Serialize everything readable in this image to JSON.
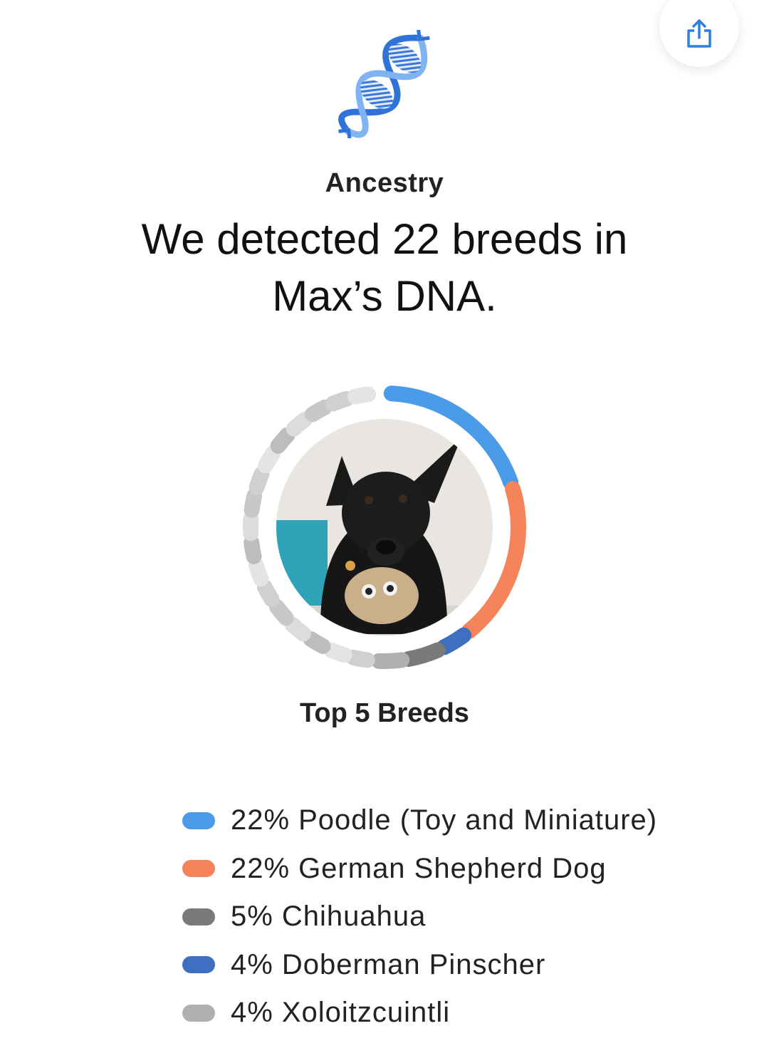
{
  "header": {
    "share_icon": "share-icon",
    "dna_icon": "dna-helix-icon"
  },
  "ancestry": {
    "label": "Ancestry",
    "headline": "We detected 22 breeds in Max’s DNA."
  },
  "breakdown": {
    "title": "Top 5 Breeds",
    "photo_alt": "dog photo",
    "breeds": [
      {
        "pct": "22%",
        "value": 22,
        "name": "Poodle (Toy and Miniature)",
        "color": "#4a9be8"
      },
      {
        "pct": "22%",
        "value": 22,
        "name": "German Shepherd Dog",
        "color": "#f5845a"
      },
      {
        "pct": "5%",
        "value": 5,
        "name": "Chihuahua",
        "color": "#7a7a7a"
      },
      {
        "pct": "4%",
        "value": 4,
        "name": "Doberman Pinscher",
        "color": "#3f6fc0"
      },
      {
        "pct": "4%",
        "value": 4,
        "name": "Xoloitzcuintli",
        "color": "#b0b0b0"
      }
    ]
  },
  "colors": {
    "accent_blue": "#2f7fe0",
    "text_dark": "#111111"
  }
}
